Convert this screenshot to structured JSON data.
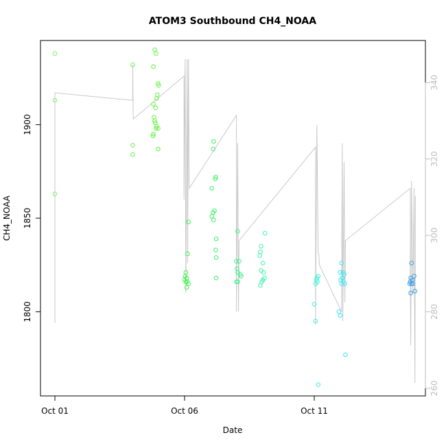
{
  "chart_data": {
    "type": "scatter",
    "title": "ATOM3 Southbound CH4_NOAA",
    "xlabel": "Date",
    "ylabel": "CH4_NOAA",
    "x_ticks": [
      "Oct 01",
      "Oct 06",
      "Oct 11"
    ],
    "x_range_days": [
      0,
      14.4
    ],
    "ylim": [
      1755,
      1945
    ],
    "y_ticks": [
      1800,
      1850,
      1900
    ],
    "y2_ticks": [
      260,
      280,
      300,
      320,
      340
    ],
    "y2lim": [
      258,
      351
    ],
    "grid": false,
    "legend": "none",
    "colors": {
      "line": "#c8c8c8",
      "axis": "#000000",
      "right_axis": "#bdbdbd"
    },
    "points": [
      {
        "x": 0.0,
        "y": 1938,
        "c": "#7ff55a"
      },
      {
        "x": 0.0,
        "y": 1913,
        "c": "#7ff55a"
      },
      {
        "x": 0.0,
        "y": 1863,
        "c": "#7ff55a"
      },
      {
        "x": 3.0,
        "y": 1932,
        "c": "#6cf24a"
      },
      {
        "x": 3.0,
        "y": 1889,
        "c": "#6cf24a"
      },
      {
        "x": 3.0,
        "y": 1884,
        "c": "#6cf24a"
      },
      {
        "x": 3.85,
        "y": 1940,
        "c": "#5ef53e"
      },
      {
        "x": 3.9,
        "y": 1938,
        "c": "#5ef53e"
      },
      {
        "x": 3.8,
        "y": 1931,
        "c": "#5ef53e"
      },
      {
        "x": 3.98,
        "y": 1922,
        "c": "#5ef53e"
      },
      {
        "x": 4.0,
        "y": 1921,
        "c": "#5ef53e"
      },
      {
        "x": 3.95,
        "y": 1916,
        "c": "#5ef53e"
      },
      {
        "x": 3.92,
        "y": 1914,
        "c": "#5ef53e"
      },
      {
        "x": 3.8,
        "y": 1911,
        "c": "#5ef53e"
      },
      {
        "x": 3.88,
        "y": 1909,
        "c": "#5ef53e"
      },
      {
        "x": 3.82,
        "y": 1904,
        "c": "#5ef53e"
      },
      {
        "x": 3.85,
        "y": 1902,
        "c": "#5ef53e"
      },
      {
        "x": 3.87,
        "y": 1901,
        "c": "#5ef53e"
      },
      {
        "x": 3.92,
        "y": 1899,
        "c": "#5ef53e"
      },
      {
        "x": 3.98,
        "y": 1898,
        "c": "#5ef53e"
      },
      {
        "x": 3.9,
        "y": 1898,
        "c": "#5ef53e"
      },
      {
        "x": 3.8,
        "y": 1895,
        "c": "#5ef53e"
      },
      {
        "x": 3.78,
        "y": 1894,
        "c": "#5ef53e"
      },
      {
        "x": 3.98,
        "y": 1887,
        "c": "#5ef53e"
      },
      {
        "x": 5.15,
        "y": 1848,
        "c": "#42f24e"
      },
      {
        "x": 5.12,
        "y": 1831,
        "c": "#42f24e"
      },
      {
        "x": 5.05,
        "y": 1821,
        "c": "#42f24e"
      },
      {
        "x": 5.02,
        "y": 1819,
        "c": "#42f24e"
      },
      {
        "x": 5.08,
        "y": 1818,
        "c": "#42f24e"
      },
      {
        "x": 5.0,
        "y": 1817,
        "c": "#42f24e"
      },
      {
        "x": 5.05,
        "y": 1816,
        "c": "#42f24e"
      },
      {
        "x": 5.1,
        "y": 1816,
        "c": "#42f24e"
      },
      {
        "x": 5.15,
        "y": 1815,
        "c": "#42f24e"
      },
      {
        "x": 5.08,
        "y": 1813,
        "c": "#42f24e"
      },
      {
        "x": 6.12,
        "y": 1891,
        "c": "#3cf265"
      },
      {
        "x": 6.1,
        "y": 1887,
        "c": "#3cf265"
      },
      {
        "x": 6.2,
        "y": 1872,
        "c": "#3cf265"
      },
      {
        "x": 6.18,
        "y": 1871,
        "c": "#3cf265"
      },
      {
        "x": 6.05,
        "y": 1866,
        "c": "#3cf265"
      },
      {
        "x": 6.15,
        "y": 1854,
        "c": "#3cf265"
      },
      {
        "x": 6.1,
        "y": 1853,
        "c": "#3cf265"
      },
      {
        "x": 6.05,
        "y": 1851,
        "c": "#3cf265"
      },
      {
        "x": 6.12,
        "y": 1849,
        "c": "#3cf265"
      },
      {
        "x": 6.22,
        "y": 1839,
        "c": "#3cf265"
      },
      {
        "x": 6.2,
        "y": 1833,
        "c": "#3cf265"
      },
      {
        "x": 6.22,
        "y": 1829,
        "c": "#3cf265"
      },
      {
        "x": 6.22,
        "y": 1818,
        "c": "#3cf265"
      },
      {
        "x": 7.05,
        "y": 1843,
        "c": "#3cf28a"
      },
      {
        "x": 7.1,
        "y": 1827,
        "c": "#3cf28a"
      },
      {
        "x": 7.0,
        "y": 1827,
        "c": "#3cf28a"
      },
      {
        "x": 7.02,
        "y": 1823,
        "c": "#3cf28a"
      },
      {
        "x": 7.05,
        "y": 1821,
        "c": "#3cf28a"
      },
      {
        "x": 7.15,
        "y": 1820,
        "c": "#3cf28a"
      },
      {
        "x": 7.18,
        "y": 1819,
        "c": "#3cf28a"
      },
      {
        "x": 7.0,
        "y": 1816,
        "c": "#3cf28a"
      },
      {
        "x": 7.05,
        "y": 1816,
        "c": "#3cf28a"
      },
      {
        "x": 8.1,
        "y": 1842,
        "c": "#3cf2aa"
      },
      {
        "x": 7.95,
        "y": 1835,
        "c": "#3cf2aa"
      },
      {
        "x": 7.92,
        "y": 1832,
        "c": "#3cf2aa"
      },
      {
        "x": 7.9,
        "y": 1830,
        "c": "#3cf2aa"
      },
      {
        "x": 8.02,
        "y": 1826,
        "c": "#3cf2aa"
      },
      {
        "x": 7.95,
        "y": 1822,
        "c": "#3cf2aa"
      },
      {
        "x": 8.05,
        "y": 1821,
        "c": "#3cf2aa"
      },
      {
        "x": 8.08,
        "y": 1818,
        "c": "#3cf2aa"
      },
      {
        "x": 8.02,
        "y": 1817,
        "c": "#3cf2aa"
      },
      {
        "x": 7.98,
        "y": 1816,
        "c": "#3cf2aa"
      },
      {
        "x": 7.92,
        "y": 1814,
        "c": "#3cf2aa"
      },
      {
        "x": 10.15,
        "y": 1819,
        "c": "#3cf2da"
      },
      {
        "x": 10.1,
        "y": 1818,
        "c": "#3cf2da"
      },
      {
        "x": 10.08,
        "y": 1817,
        "c": "#3cf2da"
      },
      {
        "x": 10.12,
        "y": 1816,
        "c": "#3cf2da"
      },
      {
        "x": 10.05,
        "y": 1815,
        "c": "#3cf2da"
      },
      {
        "x": 10.0,
        "y": 1804,
        "c": "#3cf2da"
      },
      {
        "x": 10.05,
        "y": 1795,
        "c": "#3cf2da"
      },
      {
        "x": 10.15,
        "y": 1761,
        "c": "#3cf2da"
      },
      {
        "x": 11.05,
        "y": 1826,
        "c": "#3ce6f2"
      },
      {
        "x": 11.1,
        "y": 1821,
        "c": "#3ce6f2"
      },
      {
        "x": 11.0,
        "y": 1821,
        "c": "#3ce6f2"
      },
      {
        "x": 11.15,
        "y": 1820,
        "c": "#3ce6f2"
      },
      {
        "x": 11.08,
        "y": 1818,
        "c": "#3ce6f2"
      },
      {
        "x": 11.02,
        "y": 1817,
        "c": "#3ce6f2"
      },
      {
        "x": 11.12,
        "y": 1816,
        "c": "#3ce6f2"
      },
      {
        "x": 11.18,
        "y": 1815,
        "c": "#3ce6f2"
      },
      {
        "x": 11.05,
        "y": 1815,
        "c": "#3ce6f2"
      },
      {
        "x": 10.95,
        "y": 1800,
        "c": "#3ce6f2"
      },
      {
        "x": 11.0,
        "y": 1798,
        "c": "#3ce6f2"
      },
      {
        "x": 11.2,
        "y": 1777,
        "c": "#3ce6f2"
      },
      {
        "x": 13.75,
        "y": 1826,
        "c": "#3a9ee8"
      },
      {
        "x": 13.85,
        "y": 1819,
        "c": "#3a9ee8"
      },
      {
        "x": 13.72,
        "y": 1818,
        "c": "#3a9ee8"
      },
      {
        "x": 13.78,
        "y": 1817,
        "c": "#3a9ee8"
      },
      {
        "x": 13.7,
        "y": 1816,
        "c": "#3a9ee8"
      },
      {
        "x": 13.75,
        "y": 1815,
        "c": "#3a9ee8"
      },
      {
        "x": 13.68,
        "y": 1815,
        "c": "#3a9ee8"
      },
      {
        "x": 13.8,
        "y": 1815,
        "c": "#3a9ee8"
      },
      {
        "x": 13.88,
        "y": 1811,
        "c": "#3a9ee8"
      },
      {
        "x": 13.72,
        "y": 1810,
        "c": "#3a9ee8"
      }
    ],
    "line2": [
      [
        0.0,
        1794
      ],
      [
        0.0,
        1917
      ],
      [
        3.0,
        1913
      ],
      [
        3.0,
        1932
      ],
      [
        3.02,
        1903
      ],
      [
        4.98,
        1926
      ],
      [
        4.98,
        1860
      ],
      [
        5.02,
        1935
      ],
      [
        5.05,
        1810
      ],
      [
        5.1,
        1935
      ],
      [
        5.12,
        1826
      ],
      [
        5.15,
        1935
      ],
      [
        5.18,
        1866
      ],
      [
        7.0,
        1905
      ],
      [
        7.0,
        1800
      ],
      [
        7.05,
        1890
      ],
      [
        7.08,
        1800
      ],
      [
        7.1,
        1838
      ],
      [
        10.05,
        1888
      ],
      [
        10.05,
        1793
      ],
      [
        10.1,
        1900
      ],
      [
        10.15,
        1832
      ],
      [
        10.18,
        1830
      ],
      [
        10.2,
        1825
      ],
      [
        11.05,
        1800
      ],
      [
        11.08,
        1890
      ],
      [
        11.1,
        1795
      ],
      [
        11.15,
        1880
      ],
      [
        11.18,
        1805
      ],
      [
        11.2,
        1838
      ],
      [
        13.7,
        1866
      ],
      [
        13.7,
        1826
      ],
      [
        13.72,
        1782
      ],
      [
        13.75,
        1870
      ],
      [
        13.8,
        1810
      ],
      [
        13.85,
        1866
      ],
      [
        13.88,
        1762
      ],
      [
        13.9,
        1862
      ]
    ]
  }
}
